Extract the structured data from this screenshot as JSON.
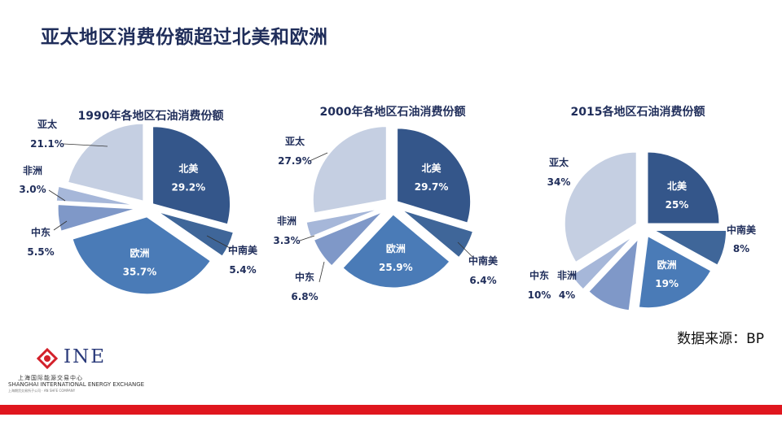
{
  "title": "亚太地区消费份额超过北美和欧洲",
  "source": "数据来源：BP",
  "logo": {
    "name": "INE",
    "cn": "上海国际能源交易中心",
    "en": "SHANGHAI INTERNATIONAL ENERGY EXCHANGE",
    "sub": "上海期货交易所子公司 · AN SHFE COMPANY"
  },
  "colors": {
    "north_america": "#34568a",
    "central_south_america": "#3f6699",
    "europe": "#4a7bb7",
    "middle_east": "#7f98c8",
    "africa": "#a6b7d9",
    "asia_pacific": "#c5cfe2",
    "accent_red": "#e0161e"
  },
  "chart_data": [
    {
      "type": "pie",
      "title": "1990年各地区石油消费份额",
      "slices": [
        {
          "label": "北美",
          "value": 29.2,
          "display": "29.2%"
        },
        {
          "label": "中南美",
          "value": 5.4,
          "display": "5.4%"
        },
        {
          "label": "欧洲",
          "value": 35.7,
          "display": "35.7%"
        },
        {
          "label": "中东",
          "value": 5.5,
          "display": "5.5%"
        },
        {
          "label": "非洲",
          "value": 3.0,
          "display": "3.0%"
        },
        {
          "label": "亚太",
          "value": 21.1,
          "display": "21.1%"
        }
      ]
    },
    {
      "type": "pie",
      "title": "2000年各地区石油消费份额",
      "slices": [
        {
          "label": "北美",
          "value": 29.7,
          "display": "29.7%"
        },
        {
          "label": "中南美",
          "value": 6.4,
          "display": "6.4%"
        },
        {
          "label": "欧洲",
          "value": 25.9,
          "display": "25.9%"
        },
        {
          "label": "中东",
          "value": 6.8,
          "display": "6.8%"
        },
        {
          "label": "非洲",
          "value": 3.3,
          "display": "3.3%"
        },
        {
          "label": "亚太",
          "value": 27.9,
          "display": "27.9%"
        }
      ]
    },
    {
      "type": "pie",
      "title": "2015各地区石油消费份额",
      "slices": [
        {
          "label": "北美",
          "value": 25,
          "display": "25%"
        },
        {
          "label": "中南美",
          "value": 8,
          "display": "8%"
        },
        {
          "label": "欧洲",
          "value": 19,
          "display": "19%"
        },
        {
          "label": "中东",
          "value": 10,
          "display": "10%"
        },
        {
          "label": "非洲",
          "value": 4,
          "display": "4%"
        },
        {
          "label": "亚太",
          "value": 34,
          "display": "34%"
        }
      ]
    }
  ]
}
